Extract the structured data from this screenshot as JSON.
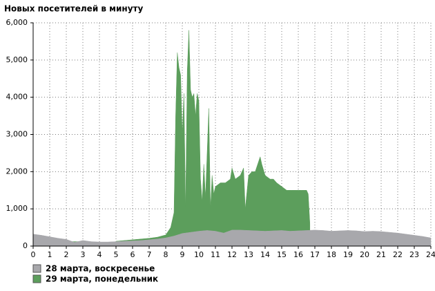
{
  "chart_data": {
    "type": "area",
    "title": "Новых посетителей в минуту",
    "xlim": [
      0,
      24
    ],
    "xticks": [
      0,
      1,
      2,
      3,
      4,
      5,
      6,
      7,
      8,
      9,
      10,
      11,
      12,
      13,
      14,
      15,
      16,
      17,
      18,
      19,
      20,
      21,
      22,
      23,
      24
    ],
    "ylim": [
      0,
      6000
    ],
    "yticks": [
      0,
      {
        "value": 1000,
        "label": "1,000"
      },
      {
        "value": 2000,
        "label": "2,000"
      },
      {
        "value": 3000,
        "label": "3,000"
      },
      {
        "value": 4000,
        "label": "4,000"
      },
      {
        "value": 5000,
        "label": "5,000"
      },
      {
        "value": 6000,
        "label": "6,000"
      }
    ],
    "grid": true,
    "legend": "bottom-left",
    "series": [
      {
        "name": "28 марта, воскресенье",
        "color": "#a8a8ac",
        "x": [
          0,
          0.5,
          1,
          1.5,
          2,
          2.5,
          3,
          3.5,
          4,
          4.5,
          5,
          5.5,
          6,
          6.5,
          7,
          7.5,
          8,
          8.5,
          9,
          9.5,
          10,
          10.5,
          11,
          11.5,
          12,
          12.5,
          13,
          13.5,
          14,
          14.5,
          15,
          15.5,
          16,
          16.5,
          17,
          17.5,
          18,
          18.5,
          19,
          19.5,
          20,
          20.5,
          21,
          21.5,
          22,
          22.5,
          23,
          23.5,
          24
        ],
        "values": [
          320,
          290,
          250,
          210,
          180,
          100,
          150,
          120,
          110,
          110,
          120,
          130,
          140,
          150,
          170,
          190,
          220,
          270,
          340,
          370,
          400,
          420,
          400,
          350,
          430,
          430,
          420,
          410,
          400,
          410,
          420,
          400,
          410,
          420,
          430,
          420,
          400,
          410,
          420,
          410,
          390,
          400,
          390,
          370,
          350,
          320,
          290,
          260,
          220
        ]
      },
      {
        "name": "29 марта, понедельник",
        "color": "#5c9e5c",
        "x": [
          2,
          2.5,
          3,
          4,
          5,
          5.5,
          6,
          6.5,
          7,
          7.5,
          8,
          8.3,
          8.5,
          8.6,
          8.7,
          8.8,
          8.9,
          9.0,
          9.1,
          9.2,
          9.3,
          9.4,
          9.5,
          9.6,
          9.7,
          9.8,
          9.9,
          10.0,
          10.1,
          10.2,
          10.3,
          10.4,
          10.6,
          10.7,
          10.8,
          10.9,
          11.0,
          11.3,
          11.6,
          11.9,
          12.0,
          12.2,
          12.5,
          12.7,
          12.8,
          13.0,
          13.2,
          13.4,
          13.7,
          13.8,
          14.0,
          14.3,
          14.5,
          14.7,
          15.0,
          15.3,
          15.6,
          15.9,
          16.2,
          16.5,
          16.6,
          16.7
        ],
        "values": [
          120,
          120,
          120,
          null,
          130,
          150,
          170,
          190,
          210,
          240,
          300,
          500,
          900,
          3500,
          5200,
          4800,
          4600,
          3000,
          4100,
          1000,
          4700,
          5800,
          4200,
          4000,
          4100,
          3500,
          4100,
          3900,
          1800,
          1200,
          2200,
          1300,
          3700,
          1000,
          1900,
          1400,
          1600,
          1700,
          1700,
          1800,
          2100,
          1800,
          1900,
          2100,
          1000,
          1900,
          2000,
          2000,
          2400,
          2200,
          1900,
          1800,
          1800,
          1700,
          1600,
          1500,
          1500,
          1500,
          1500,
          1500,
          1400,
          600
        ]
      }
    ]
  }
}
